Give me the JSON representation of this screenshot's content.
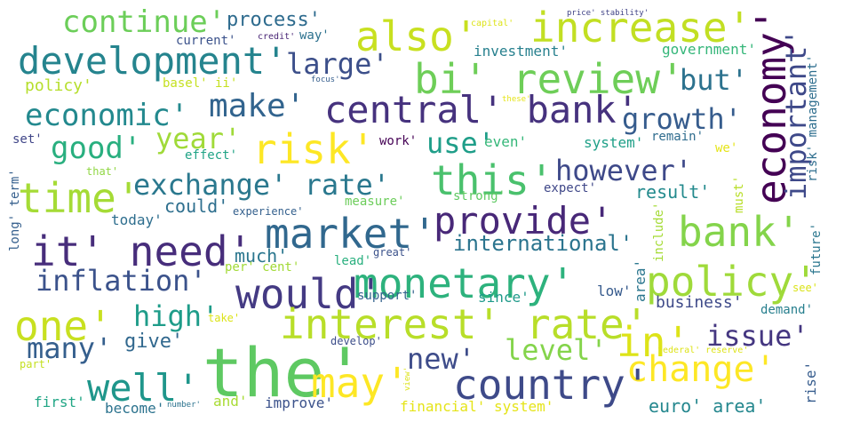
{
  "words": [
    {
      "name": "continue",
      "text": "continue'"
    },
    {
      "name": "process",
      "text": "process'"
    },
    {
      "name": "also",
      "text": "also'"
    },
    {
      "name": "increase",
      "text": "increase'"
    },
    {
      "name": "development",
      "text": "development'"
    },
    {
      "name": "large",
      "text": "large'"
    },
    {
      "name": "bi-review",
      "text": "bi' review'"
    },
    {
      "name": "but",
      "text": "but'"
    },
    {
      "name": "policy-small",
      "text": "policy'"
    },
    {
      "name": "make",
      "text": "make'"
    },
    {
      "name": "central-bank",
      "text": "central' bank'"
    },
    {
      "name": "economy",
      "text": "economy'"
    },
    {
      "name": "economic",
      "text": "economic'"
    },
    {
      "name": "growth",
      "text": "growth'"
    },
    {
      "name": "year",
      "text": "year'"
    },
    {
      "name": "good",
      "text": "good'"
    },
    {
      "name": "risk",
      "text": "risk'"
    },
    {
      "name": "use",
      "text": "use'"
    },
    {
      "name": "even",
      "text": "even'"
    },
    {
      "name": "time",
      "text": "time'"
    },
    {
      "name": "exchange-rate",
      "text": "exchange' rate'"
    },
    {
      "name": "this",
      "text": "this'"
    },
    {
      "name": "however",
      "text": "however'"
    },
    {
      "name": "it-need",
      "text": "it' need'"
    },
    {
      "name": "market",
      "text": "market'"
    },
    {
      "name": "provide",
      "text": "provide'"
    },
    {
      "name": "international",
      "text": "international'"
    },
    {
      "name": "bank",
      "text": "bank'"
    },
    {
      "name": "inflation",
      "text": "inflation'"
    },
    {
      "name": "would",
      "text": "would'"
    },
    {
      "name": "monetary",
      "text": "monetary'"
    },
    {
      "name": "policy",
      "text": "policy'"
    },
    {
      "name": "one",
      "text": "one'"
    },
    {
      "name": "high",
      "text": "high'"
    },
    {
      "name": "interest-rate",
      "text": "interest' rate'"
    },
    {
      "name": "in",
      "text": "in'"
    },
    {
      "name": "many",
      "text": "many'"
    },
    {
      "name": "give",
      "text": "give'"
    },
    {
      "name": "issue",
      "text": "issue'"
    },
    {
      "name": "the",
      "text": "the'"
    },
    {
      "name": "new",
      "text": "new'"
    },
    {
      "name": "level",
      "text": "level'"
    },
    {
      "name": "change",
      "text": "change'"
    },
    {
      "name": "well",
      "text": "well'"
    },
    {
      "name": "may",
      "text": "may'"
    },
    {
      "name": "country",
      "text": "country'"
    },
    {
      "name": "first",
      "text": "first'"
    },
    {
      "name": "become",
      "text": "become'"
    },
    {
      "name": "and",
      "text": "and'"
    },
    {
      "name": "improve",
      "text": "improve'"
    },
    {
      "name": "financial-system",
      "text": "financial' system'"
    },
    {
      "name": "euro-area",
      "text": "euro' area'"
    },
    {
      "name": "capital",
      "text": "capital'"
    },
    {
      "name": "price-stability",
      "text": "price' stability'"
    },
    {
      "name": "current",
      "text": "current'"
    },
    {
      "name": "credit",
      "text": "credit'"
    },
    {
      "name": "way",
      "text": "way'"
    },
    {
      "name": "investment",
      "text": "investment'"
    },
    {
      "name": "government",
      "text": "government'"
    },
    {
      "name": "basel-ii",
      "text": "basel' ii'"
    },
    {
      "name": "focus",
      "text": "focus'"
    },
    {
      "name": "these",
      "text": "these'"
    },
    {
      "name": "set",
      "text": "set'"
    },
    {
      "name": "work",
      "text": "work'"
    },
    {
      "name": "system",
      "text": "system'"
    },
    {
      "name": "remain",
      "text": "remain'"
    },
    {
      "name": "we",
      "text": "we'"
    },
    {
      "name": "effect",
      "text": "effect'"
    },
    {
      "name": "that",
      "text": "that'"
    },
    {
      "name": "strong",
      "text": "strong'"
    },
    {
      "name": "expect",
      "text": "expect'"
    },
    {
      "name": "result",
      "text": "result'"
    },
    {
      "name": "could",
      "text": "could'"
    },
    {
      "name": "experience",
      "text": "experience'"
    },
    {
      "name": "measure",
      "text": "measure'"
    },
    {
      "name": "today",
      "text": "today'"
    },
    {
      "name": "much",
      "text": "much'"
    },
    {
      "name": "great",
      "text": "great'"
    },
    {
      "name": "lead",
      "text": "lead'"
    },
    {
      "name": "per-cent",
      "text": "per' cent'"
    },
    {
      "name": "support",
      "text": "support'"
    },
    {
      "name": "since",
      "text": "since'"
    },
    {
      "name": "low",
      "text": "low'"
    },
    {
      "name": "business",
      "text": "business'"
    },
    {
      "name": "see",
      "text": "see'"
    },
    {
      "name": "demand",
      "text": "demand'"
    },
    {
      "name": "take",
      "text": "take'"
    },
    {
      "name": "develop",
      "text": "develop'"
    },
    {
      "name": "part",
      "text": "part'"
    },
    {
      "name": "federal-reserve",
      "text": "federal' reserve'"
    },
    {
      "name": "number",
      "text": "number'"
    },
    {
      "name": "important",
      "text": "important'"
    },
    {
      "name": "risk-management",
      "text": "risk' management'"
    },
    {
      "name": "long-term",
      "text": "long' term'"
    },
    {
      "name": "must",
      "text": "must'"
    },
    {
      "name": "include",
      "text": "include'"
    },
    {
      "name": "area",
      "text": "area'"
    },
    {
      "name": "rise",
      "text": "rise'"
    },
    {
      "name": "future",
      "text": "future'"
    },
    {
      "name": "view",
      "text": "view'"
    }
  ]
}
